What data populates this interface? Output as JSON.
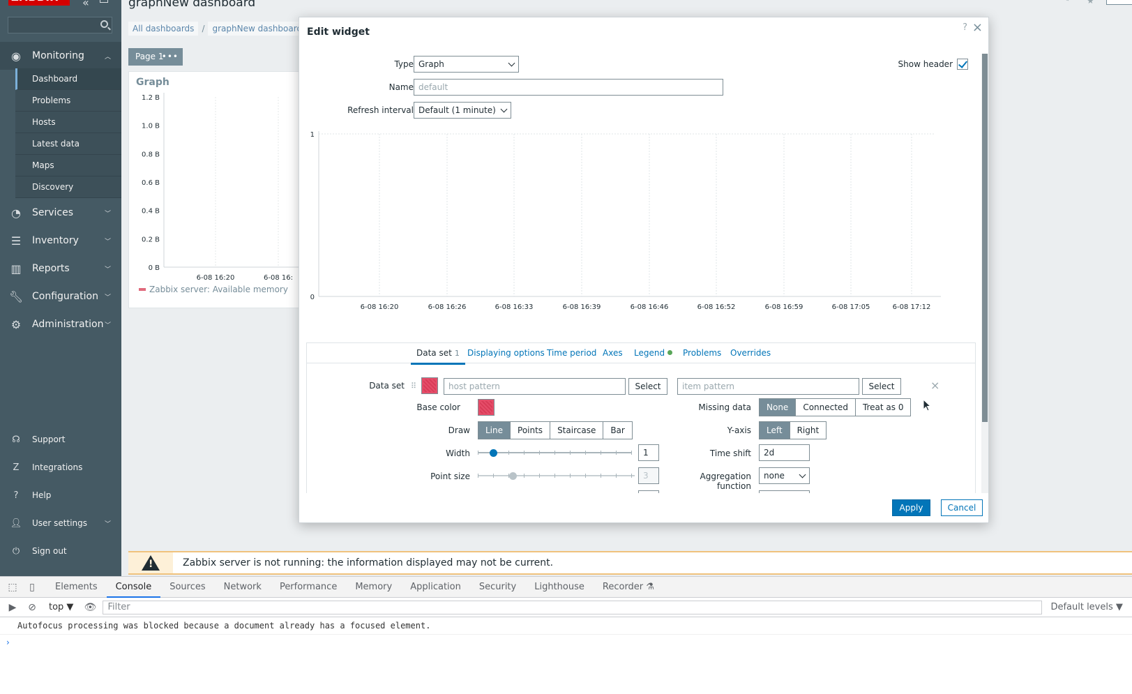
{
  "app": {
    "logo": "ZABBIX",
    "page_title": "graphNew dashboard"
  },
  "sidebar": {
    "search_placeholder": "",
    "menu": [
      {
        "label": "Monitoring",
        "icon": "eye-icon",
        "expanded": true
      },
      {
        "label": "Services",
        "icon": "clock-icon"
      },
      {
        "label": "Inventory",
        "icon": "list-icon"
      },
      {
        "label": "Reports",
        "icon": "bar-chart-icon"
      },
      {
        "label": "Configuration",
        "icon": "wrench-icon"
      },
      {
        "label": "Administration",
        "icon": "gear-icon"
      }
    ],
    "submenu": [
      "Dashboard",
      "Problems",
      "Hosts",
      "Latest data",
      "Maps",
      "Discovery"
    ],
    "bottom": [
      {
        "label": "Support",
        "icon": "headset-icon"
      },
      {
        "label": "Integrations",
        "icon": "integrations-icon"
      },
      {
        "label": "Help",
        "icon": "question-icon"
      },
      {
        "label": "User settings",
        "icon": "user-icon"
      },
      {
        "label": "Sign out",
        "icon": "power-icon"
      }
    ]
  },
  "breadcrumb": {
    "all": "All dashboards",
    "sep": "/",
    "current": "graphNew dashboard"
  },
  "page_tab": {
    "label": "Page 1",
    "dots": "•••"
  },
  "bg_widget": {
    "title": "Graph",
    "legend": "Zabbix server: Available memory",
    "chart_data": {
      "type": "line",
      "title": "Graph",
      "y_ticks": [
        "1.2 B",
        "1.0 B",
        "0.8 B",
        "0.6 B",
        "0.4 B",
        "0.2 B",
        "0 B"
      ],
      "x_ticks": [
        "6-08 16:20",
        "6-08 16:"
      ],
      "series": [
        {
          "name": "Zabbix server: Available memory",
          "values": []
        }
      ],
      "grid": true
    }
  },
  "modal": {
    "title": "Edit widget",
    "help": "?",
    "close": "×",
    "type_label": "Type",
    "type_value": "Graph",
    "name_label": "Name",
    "name_placeholder": "default",
    "refresh_label": "Refresh interval",
    "refresh_value": "Default (1 minute)",
    "show_header_label": "Show header",
    "show_header_checked": true,
    "preview_chart": {
      "type": "line",
      "y_ticks": [
        "1",
        "0"
      ],
      "x_ticks": [
        "6-08 16:20",
        "6-08 16:26",
        "6-08 16:33",
        "6-08 16:39",
        "6-08 16:46",
        "6-08 16:52",
        "6-08 16:59",
        "6-08 17:05",
        "6-08 17:12"
      ],
      "series": [],
      "grid": true
    },
    "tabs": [
      {
        "label": "Data set",
        "count": "1",
        "active": true
      },
      {
        "label": "Displaying options"
      },
      {
        "label": "Time period"
      },
      {
        "label": "Axes"
      },
      {
        "label": "Legend",
        "dot": true
      },
      {
        "label": "Problems"
      },
      {
        "label": "Overrides"
      }
    ],
    "dataset": {
      "label": "Data set",
      "host_placeholder": "host pattern",
      "item_placeholder": "item pattern",
      "select": "Select",
      "base_color_label": "Base color",
      "base_color": "#e54d69",
      "draw_label": "Draw",
      "draw_options": [
        "Line",
        "Points",
        "Staircase",
        "Bar"
      ],
      "draw_selected": "Line",
      "width_label": "Width",
      "width_value": "1",
      "point_size_label": "Point size",
      "point_size_value": "3",
      "missing_label": "Missing data",
      "missing_options": [
        "None",
        "Connected",
        "Treat as 0"
      ],
      "missing_selected": "None",
      "yaxis_label": "Y-axis",
      "yaxis_options": [
        "Left",
        "Right"
      ],
      "yaxis_selected": "Left",
      "timeshift_label": "Time shift",
      "timeshift_value": "2d",
      "aggfunc_label": "Aggregation function",
      "aggfunc_value": "none"
    },
    "apply": "Apply",
    "cancel": "Cancel"
  },
  "warning": {
    "text": "Zabbix server is not running: the information displayed may not be current."
  },
  "devtools": {
    "tabs": [
      "Elements",
      "Console",
      "Sources",
      "Network",
      "Performance",
      "Memory",
      "Application",
      "Security",
      "Lighthouse",
      "Recorder ⚗"
    ],
    "active_tab": "Console",
    "context": "top ▼",
    "filter_placeholder": "Filter",
    "levels": "Default levels ▼",
    "message": "Autofocus processing was blocked because a document already has a focused element.",
    "prompt": "›"
  },
  "colors": {
    "sidebar": "#455a64",
    "accent": "#0275b8",
    "series": "#e06a7c"
  }
}
